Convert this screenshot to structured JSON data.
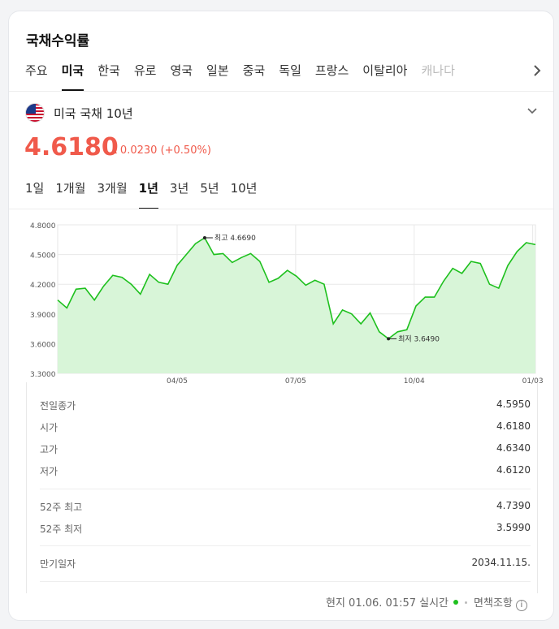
{
  "title": "국채수익률",
  "tabs": [
    {
      "label": "주요",
      "active": false
    },
    {
      "label": "미국",
      "active": true
    },
    {
      "label": "한국",
      "active": false
    },
    {
      "label": "유로",
      "active": false
    },
    {
      "label": "영국",
      "active": false
    },
    {
      "label": "일본",
      "active": false
    },
    {
      "label": "중국",
      "active": false
    },
    {
      "label": "독일",
      "active": false
    },
    {
      "label": "프랑스",
      "active": false
    },
    {
      "label": "이탈리아",
      "active": false
    },
    {
      "label": "캐나다",
      "active": false
    }
  ],
  "tabs_next_icon": "chevron-right-icon",
  "bond": {
    "name": "미국 국채 10년",
    "flag_icon": "us-flag-icon",
    "dropdown_icon": "chevron-down-icon"
  },
  "quote": {
    "price": "4.6180",
    "change": "0.0230",
    "change_pct": "(+0.50%)",
    "direction": "up",
    "color": "#f05a4b"
  },
  "periods": [
    {
      "label": "1일",
      "active": false
    },
    {
      "label": "1개월",
      "active": false
    },
    {
      "label": "3개월",
      "active": false
    },
    {
      "label": "1년",
      "active": true
    },
    {
      "label": "3년",
      "active": false
    },
    {
      "label": "5년",
      "active": false
    },
    {
      "label": "10년",
      "active": false
    }
  ],
  "chart_data": {
    "type": "area",
    "series_color": "#1ec01e",
    "fill_color": "#d8f5d8",
    "grid": true,
    "ylim": [
      3.3,
      4.8
    ],
    "yticks": [
      "4.8000",
      "4.5000",
      "4.2000",
      "3.9000",
      "3.6000",
      "3.3000"
    ],
    "ytick_values": [
      4.8,
      4.5,
      4.2,
      3.9,
      3.6,
      3.3
    ],
    "xticks": [
      "04/05",
      "07/05",
      "10/04",
      "01/03"
    ],
    "xtick_index": [
      13.0,
      25.9,
      38.8,
      51.7
    ],
    "values": [
      4.04,
      3.96,
      4.15,
      4.16,
      4.04,
      4.18,
      4.29,
      4.27,
      4.2,
      4.1,
      4.3,
      4.22,
      4.2,
      4.39,
      4.5,
      4.61,
      4.669,
      4.5,
      4.51,
      4.42,
      4.47,
      4.51,
      4.43,
      4.22,
      4.26,
      4.34,
      4.28,
      4.19,
      4.24,
      4.2,
      3.8,
      3.94,
      3.9,
      3.8,
      3.91,
      3.72,
      3.649,
      3.72,
      3.74,
      3.98,
      4.07,
      4.07,
      4.23,
      4.36,
      4.31,
      4.43,
      4.41,
      4.2,
      4.16,
      4.39,
      4.53,
      4.62,
      4.6
    ],
    "annotations": [
      {
        "label": "최고",
        "value": "4.6690",
        "index": 16
      },
      {
        "label": "최저",
        "value": "3.6490",
        "index": 36
      }
    ]
  },
  "stats": [
    {
      "label": "전일종가",
      "value": "4.5950"
    },
    {
      "label": "시가",
      "value": "4.6180"
    },
    {
      "label": "고가",
      "value": "4.6340"
    },
    {
      "label": "저가",
      "value": "4.6120"
    },
    {
      "label": "52주 최고",
      "value": "4.7390"
    },
    {
      "label": "52주 최저",
      "value": "3.5990"
    },
    {
      "label": "만기일자",
      "value": "2034.11.15."
    }
  ],
  "footer": {
    "time": "현지 01.06. 01:57",
    "realtime": "실시간",
    "disclaimer": "면책조항",
    "status_color": "#1ec01e",
    "info_icon": "info-icon"
  }
}
